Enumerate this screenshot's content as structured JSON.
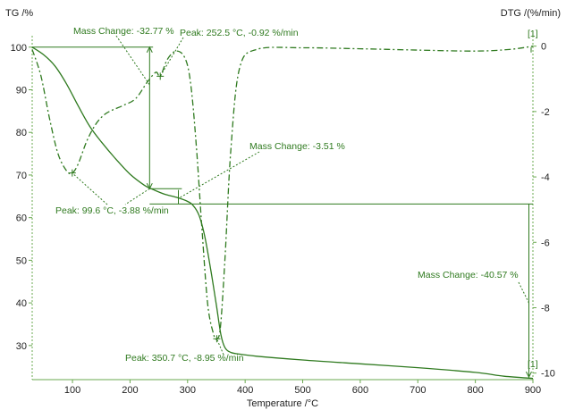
{
  "colors": {
    "curve": "#2f7a1f",
    "axis": "#6aa84f",
    "text": "#222222",
    "background": "#ffffff"
  },
  "chart_data": {
    "type": "line",
    "title": "",
    "xlabel": "Temperature /°C",
    "ylabel_left": "TG /%",
    "ylabel_right": "DTG /(%/min)",
    "xlim": [
      30,
      900
    ],
    "ylim_left": [
      22,
      101
    ],
    "ylim_right": [
      -10.2,
      0.1
    ],
    "xticks": [
      100,
      200,
      300,
      400,
      500,
      600,
      700,
      800,
      900
    ],
    "yticks_left": [
      30,
      40,
      50,
      60,
      70,
      80,
      90,
      100
    ],
    "yticks_right": [
      0,
      -2,
      -4,
      -6,
      -8,
      -10
    ],
    "grid": false,
    "series": [
      {
        "axis": "left",
        "style": "solid",
        "x": [
          30,
          50,
          70,
          90,
          110,
          130,
          150,
          175,
          200,
          225,
          240,
          260,
          280,
          300,
          310,
          320,
          330,
          340,
          350,
          358,
          365,
          375,
          390,
          420,
          500,
          600,
          700,
          800,
          850,
          900
        ],
        "y": [
          100,
          98.2,
          95.5,
          91.3,
          86.2,
          81.4,
          77.8,
          73.8,
          70.2,
          67.6,
          66.6,
          65.5,
          64.8,
          63.8,
          62.8,
          60.5,
          55.5,
          48,
          39.5,
          32.5,
          29.5,
          28.4,
          28,
          27.5,
          26.6,
          25.7,
          24.8,
          23.7,
          22.8,
          22.3
        ]
      },
      {
        "axis": "right",
        "style": "dashdot",
        "x": [
          30,
          45,
          60,
          75,
          90,
          99.6,
          110,
          125,
          140,
          155,
          170,
          190,
          210,
          230,
          245,
          252.5,
          265,
          280,
          295,
          305,
          315,
          325,
          335,
          345,
          350.7,
          357,
          365,
          375,
          390,
          420,
          500,
          600,
          700,
          800,
          860,
          900
        ],
        "y": [
          -0.1,
          -0.9,
          -2.2,
          -3.3,
          -3.82,
          -3.88,
          -3.6,
          -2.9,
          -2.4,
          -2.1,
          -1.95,
          -1.8,
          -1.6,
          -1.1,
          -0.8,
          -0.92,
          -0.4,
          -0.15,
          -0.35,
          -1.1,
          -3.0,
          -5.6,
          -7.9,
          -8.8,
          -8.95,
          -8.6,
          -6.5,
          -3.2,
          -0.7,
          -0.1,
          -0.05,
          -0.08,
          -0.12,
          -0.15,
          -0.1,
          0
        ]
      }
    ],
    "annotations": {
      "peak1": "Peak: 99.6 °C, -3.88 %/min",
      "peak2": "Peak: 252.5 °C, -0.92 %/min",
      "peak3": "Peak: 350.7 °C, -8.95 %/min",
      "mass1": "Mass Change: -32.77 %",
      "mass2": "Mass Change: -3.51 %",
      "mass3": "Mass Change: -40.57 %",
      "bracket_label_top": "[1]",
      "bracket_label_bottom": "[1]"
    }
  }
}
